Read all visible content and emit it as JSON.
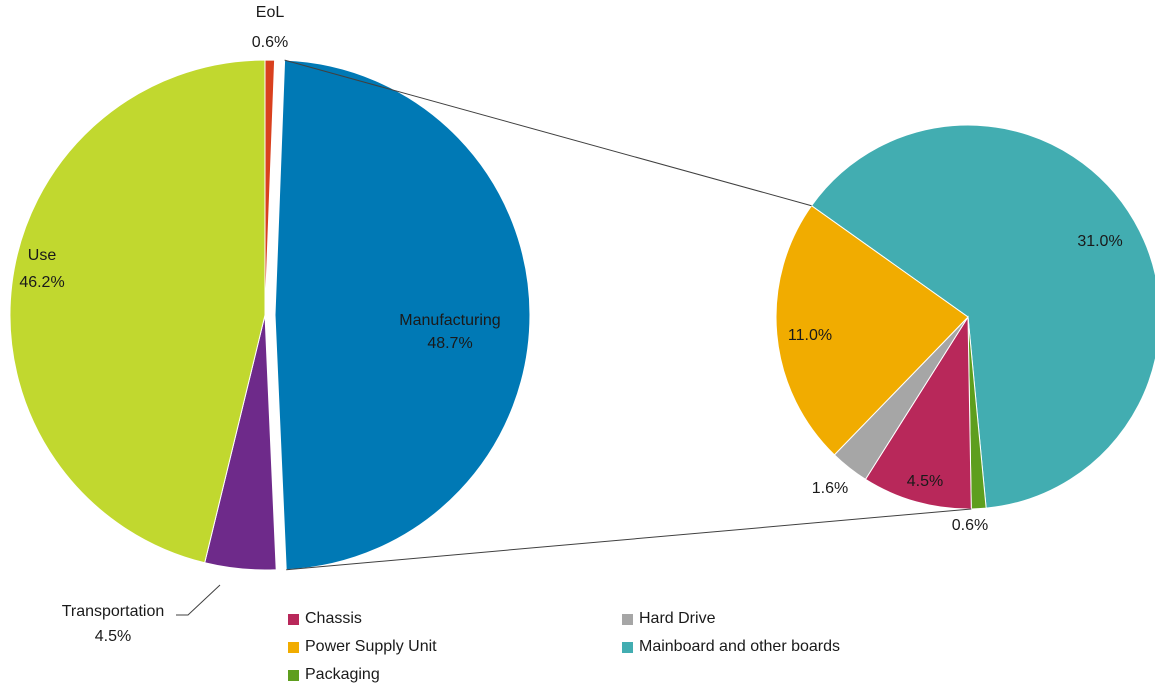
{
  "chart_data": [
    {
      "type": "pie",
      "slices": [
        {
          "label": "EoL",
          "value": 0.6,
          "value_label": "0.6%",
          "color": "#D9401E"
        },
        {
          "label": "Manufacturing",
          "value": 48.7,
          "value_label": "48.7%",
          "color": "#0079B5"
        },
        {
          "label": "Transportation",
          "value": 4.5,
          "value_label": "4.5%",
          "color": "#6E2A8A"
        },
        {
          "label": "Use",
          "value": 46.2,
          "value_label": "46.2%",
          "color": "#C1D82F"
        }
      ],
      "exploded_slice": "Manufacturing"
    },
    {
      "type": "pie",
      "slices": [
        {
          "label": "Mainboard and other boards",
          "value": 31.0,
          "value_label": "31.0%",
          "color": "#42ADB1"
        },
        {
          "label": "Packaging",
          "value": 0.6,
          "value_label": "0.6%",
          "color": "#5E9E1E"
        },
        {
          "label": "Chassis",
          "value": 4.5,
          "value_label": "4.5%",
          "color": "#B8285A"
        },
        {
          "label": "Hard Drive",
          "value": 1.6,
          "value_label": "1.6%",
          "color": "#A6A6A6"
        },
        {
          "label": "Power Supply Unit",
          "value": 11.0,
          "value_label": "11.0%",
          "color": "#F1AC00"
        }
      ]
    }
  ],
  "legend": [
    {
      "label": "Chassis",
      "color": "#B8285A"
    },
    {
      "label": "Hard Drive",
      "color": "#A6A6A6"
    },
    {
      "label": "Power Supply Unit",
      "color": "#F1AC00"
    },
    {
      "label": "Mainboard and other boards",
      "color": "#42ADB1"
    },
    {
      "label": "Packaging",
      "color": "#5E9E1E"
    }
  ],
  "legend_position": "bottom"
}
